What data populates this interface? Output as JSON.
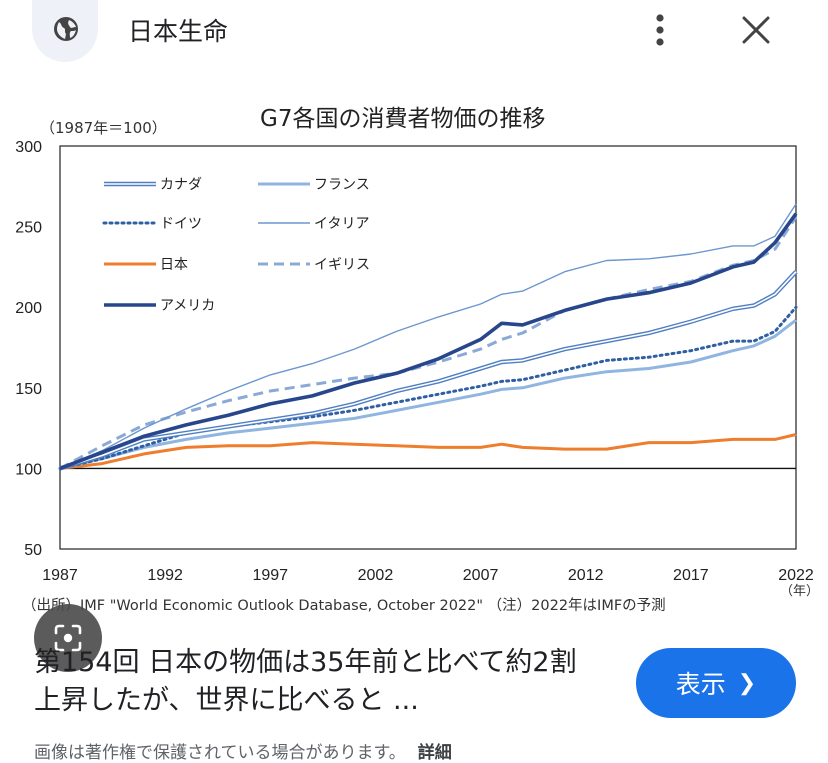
{
  "header": {
    "site_name": "日本生命",
    "globe_icon": "globe-icon",
    "menu_icon": "more-vert-icon",
    "close_icon": "close-icon"
  },
  "figure": {
    "unit_label": "（1987年＝100）",
    "year_unit": "（年）",
    "source": "（出所）IMF \"World Economic Outlook Database, October 2022\" （注）2022年はIMFの予測"
  },
  "chart_data": {
    "type": "line",
    "title": "G7各国の消費者物価の推移",
    "xlim": [
      1987,
      2022
    ],
    "ylim": [
      50,
      300
    ],
    "xticks": [
      1987,
      1992,
      1997,
      2002,
      2007,
      2012,
      2017,
      2022
    ],
    "xtick_labels": [
      "1987",
      "1992",
      "1997",
      "2002",
      "2007",
      "2012",
      "2017",
      "2022"
    ],
    "yticks": [
      50,
      100,
      150,
      200,
      250,
      300
    ],
    "ytick_labels": [
      "50",
      "100",
      "150",
      "200",
      "250",
      "300"
    ],
    "reference_line": 100,
    "legend_position": "top-left",
    "series": [
      {
        "name": "カナダ",
        "color": "#4f7fc2",
        "style": "double",
        "x": [
          1987,
          1989,
          1991,
          1993,
          1995,
          1997,
          1999,
          2001,
          2003,
          2005,
          2007,
          2008,
          2009,
          2011,
          2013,
          2015,
          2017,
          2019,
          2020,
          2021,
          2022
        ],
        "y": [
          100,
          108,
          118,
          122,
          126,
          130,
          134,
          140,
          148,
          154,
          162,
          166,
          167,
          174,
          179,
          184,
          191,
          199,
          201,
          208,
          222
        ]
      },
      {
        "name": "フランス",
        "color": "#8fb5e0",
        "style": "solid-thick",
        "x": [
          1987,
          1989,
          1991,
          1993,
          1995,
          1997,
          1999,
          2001,
          2003,
          2005,
          2007,
          2008,
          2009,
          2011,
          2013,
          2015,
          2017,
          2019,
          2020,
          2021,
          2022
        ],
        "y": [
          100,
          106,
          113,
          118,
          122,
          125,
          128,
          131,
          136,
          141,
          146,
          149,
          150,
          156,
          160,
          162,
          166,
          173,
          176,
          182,
          192
        ]
      },
      {
        "name": "ドイツ",
        "color": "#2f5fa3",
        "style": "dotted",
        "x": [
          1987,
          1989,
          1991,
          1993,
          1995,
          1997,
          1999,
          2001,
          2003,
          2005,
          2007,
          2008,
          2009,
          2011,
          2013,
          2015,
          2017,
          2019,
          2020,
          2021,
          2022
        ],
        "y": [
          100,
          106,
          114,
          122,
          126,
          129,
          132,
          136,
          141,
          146,
          151,
          154,
          155,
          161,
          167,
          169,
          173,
          179,
          179,
          185,
          200
        ]
      },
      {
        "name": "イタリア",
        "color": "#6b97d0",
        "style": "solid-thin",
        "x": [
          1987,
          1989,
          1991,
          1993,
          1995,
          1997,
          1999,
          2001,
          2003,
          2005,
          2007,
          2008,
          2009,
          2011,
          2013,
          2015,
          2017,
          2019,
          2020,
          2021,
          2022
        ],
        "y": [
          100,
          111,
          125,
          137,
          148,
          158,
          165,
          174,
          185,
          194,
          202,
          208,
          210,
          222,
          229,
          230,
          233,
          238,
          238,
          244,
          264
        ]
      },
      {
        "name": "日本",
        "color": "#ee7d2e",
        "style": "solid-thick",
        "x": [
          1987,
          1989,
          1991,
          1993,
          1995,
          1997,
          1999,
          2001,
          2003,
          2005,
          2007,
          2008,
          2009,
          2011,
          2013,
          2015,
          2017,
          2019,
          2020,
          2021,
          2022
        ],
        "y": [
          100,
          103,
          109,
          113,
          114,
          114,
          116,
          115,
          114,
          113,
          113,
          115,
          113,
          112,
          112,
          116,
          116,
          118,
          118,
          118,
          121
        ]
      },
      {
        "name": "イギリス",
        "color": "#8aa9d6",
        "style": "dashed",
        "x": [
          1987,
          1989,
          1991,
          1993,
          1995,
          1997,
          1999,
          2001,
          2003,
          2005,
          2007,
          2008,
          2009,
          2011,
          2013,
          2015,
          2017,
          2019,
          2020,
          2021,
          2022
        ],
        "y": [
          100,
          114,
          127,
          135,
          142,
          148,
          152,
          156,
          159,
          166,
          174,
          180,
          184,
          198,
          205,
          211,
          216,
          226,
          229,
          236,
          256
        ]
      },
      {
        "name": "アメリカ",
        "color": "#28468c",
        "style": "solid-bold",
        "x": [
          1987,
          1989,
          1991,
          1993,
          1995,
          1997,
          1999,
          2001,
          2003,
          2005,
          2007,
          2008,
          2009,
          2011,
          2013,
          2015,
          2017,
          2019,
          2020,
          2021,
          2022
        ],
        "y": [
          100,
          110,
          120,
          127,
          133,
          140,
          145,
          153,
          159,
          168,
          180,
          190,
          189,
          198,
          205,
          209,
          215,
          225,
          228,
          240,
          258
        ]
      }
    ]
  },
  "result": {
    "caption": "第154回 日本の物価は35年前と比べて約2割上昇したが、世界に比べると ...",
    "show_button_label": "表示",
    "copyright": "画像は著作権で保護されている場合があります。",
    "details_link": "詳細"
  }
}
